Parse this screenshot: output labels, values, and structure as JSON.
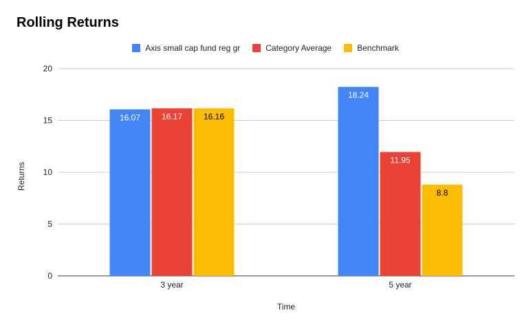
{
  "chart_data": {
    "type": "bar",
    "title": "Rolling Returns",
    "xlabel": "Time",
    "ylabel": "Returns",
    "categories": [
      "3 year",
      "5 year"
    ],
    "series": [
      {
        "name": "Axis small cap fund reg gr",
        "color": "#4285f4",
        "label_color": "#ffffff",
        "values": [
          16.07,
          18.24
        ],
        "labels": [
          "16.07",
          "18.24"
        ]
      },
      {
        "name": "Category Average",
        "color": "#ea4335",
        "label_color": "#ffffff",
        "values": [
          16.17,
          11.95
        ],
        "labels": [
          "16.17",
          "11.95"
        ]
      },
      {
        "name": "Benchmark",
        "color": "#fbbc04",
        "label_color": "#000000",
        "values": [
          16.16,
          8.8
        ],
        "labels": [
          "16.16",
          "8.8"
        ]
      }
    ],
    "ylim": [
      0,
      20
    ],
    "yticks": [
      "0",
      "5",
      "10",
      "15",
      "20"
    ],
    "grid": true,
    "legend_position": "top"
  }
}
